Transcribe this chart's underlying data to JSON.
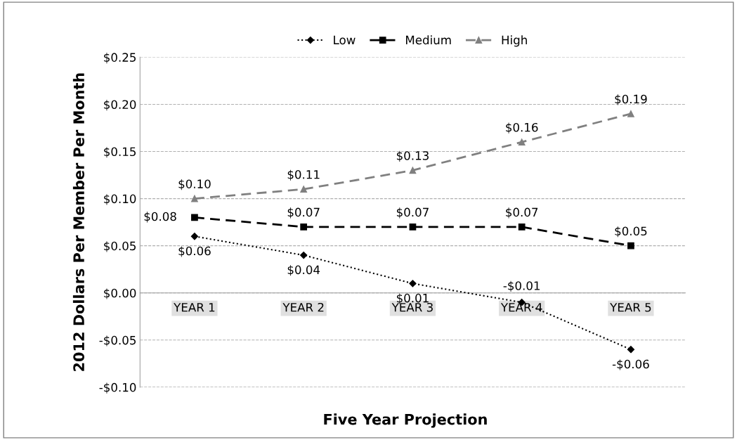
{
  "chart_data": {
    "type": "line",
    "xlabel": "Five Year Projection",
    "ylabel": "2012 Dollars Per Member Per Month",
    "categories": [
      "YEAR 1",
      "YEAR 2",
      "YEAR 3",
      "YEAR 4",
      "YEAR 5"
    ],
    "series": [
      {
        "name": "Low",
        "color": "#000000",
        "marker": "diamond",
        "line_style": "dotted",
        "values": [
          0.06,
          0.04,
          0.01,
          -0.01,
          -0.06
        ],
        "value_labels": [
          "$0.06",
          "$0.04",
          "$0.01",
          "-$0.01",
          "-$0.06"
        ]
      },
      {
        "name": "Medium",
        "color": "#000000",
        "marker": "square",
        "line_style": "dashed",
        "values": [
          0.08,
          0.07,
          0.07,
          0.07,
          0.05
        ],
        "value_labels": [
          "$0.08",
          "$0.07",
          "$0.07",
          "$0.07",
          "$0.05"
        ]
      },
      {
        "name": "High",
        "color": "#808080",
        "marker": "triangle",
        "line_style": "dashed",
        "values": [
          0.1,
          0.11,
          0.13,
          0.16,
          0.19
        ],
        "value_labels": [
          "$0.10",
          "$0.11",
          "$0.13",
          "$0.16",
          "$0.19"
        ]
      }
    ],
    "ylim": [
      -0.1,
      0.25
    ],
    "yticks": [
      {
        "value": -0.1,
        "label": "-$0.10"
      },
      {
        "value": -0.05,
        "label": "-$0.05"
      },
      {
        "value": 0.0,
        "label": "$0.00"
      },
      {
        "value": 0.05,
        "label": "$0.05"
      },
      {
        "value": 0.1,
        "label": "$0.10"
      },
      {
        "value": 0.15,
        "label": "$0.15"
      },
      {
        "value": 0.2,
        "label": "$0.20"
      },
      {
        "value": 0.25,
        "label": "$0.25"
      }
    ],
    "grid": "y",
    "legend": "top"
  }
}
